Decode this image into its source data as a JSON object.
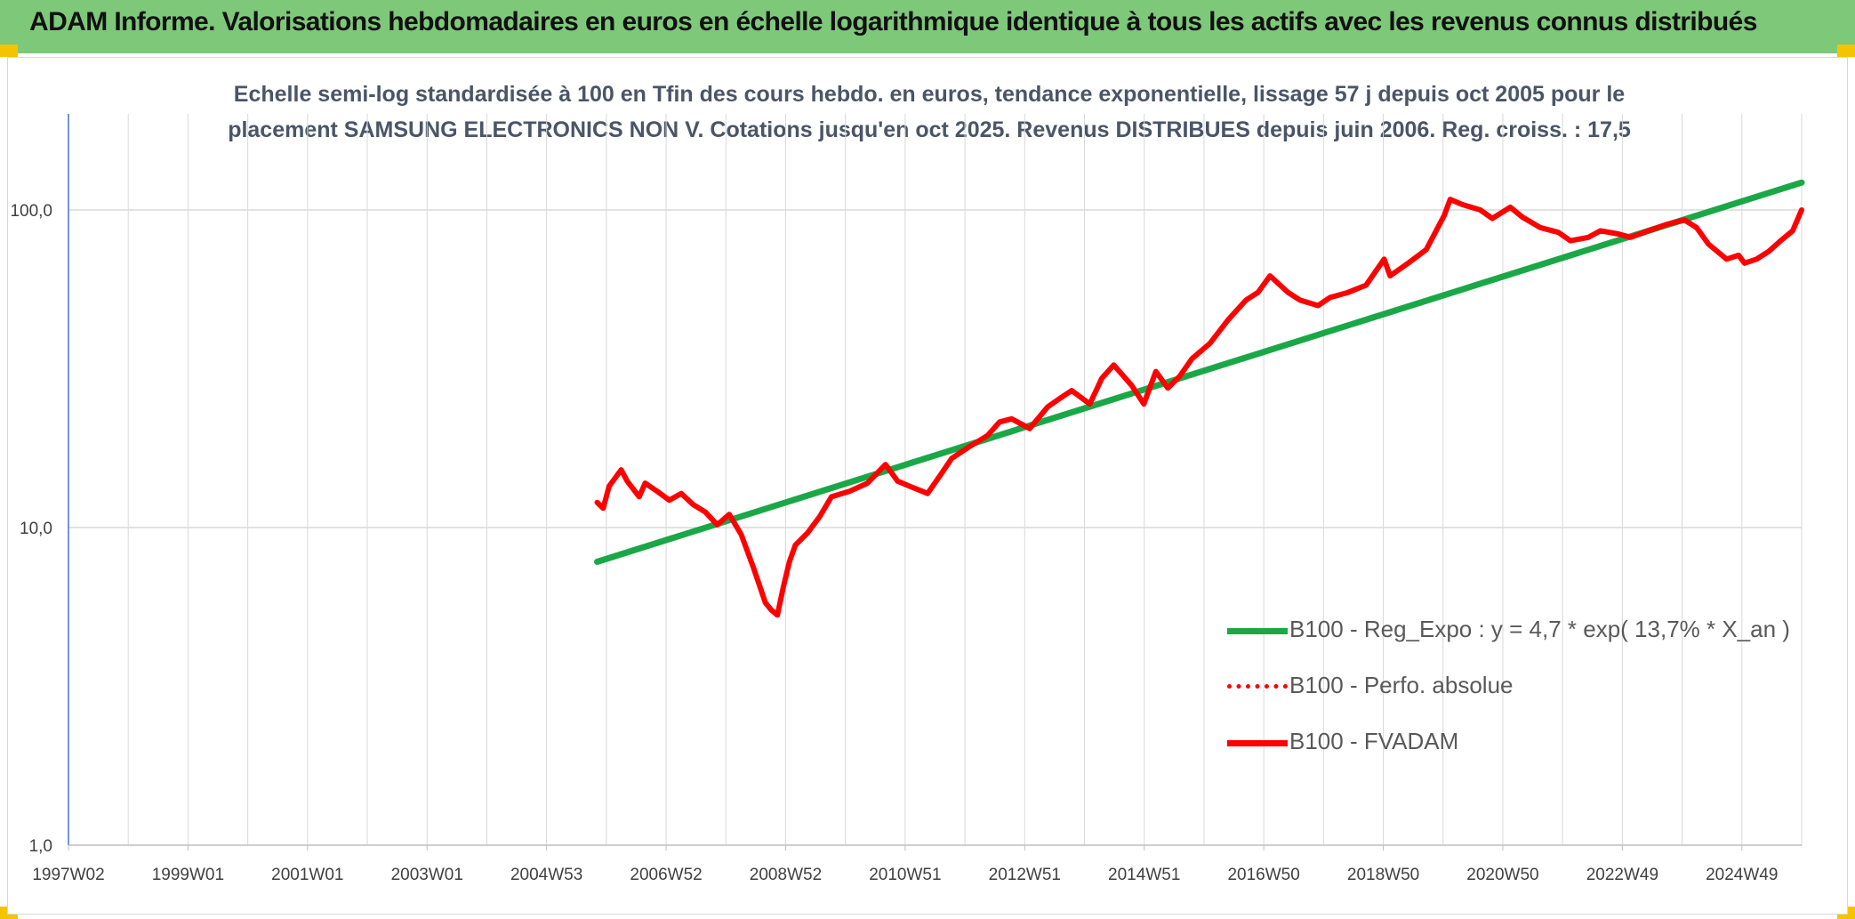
{
  "header": {
    "title": "ADAM Informe. Valorisations hebdomadaires en euros en échelle logarithmique identique à tous les actifs avec les revenus connus distribués"
  },
  "colors": {
    "banner": "#7ec87a",
    "trend_line": "#1aa847",
    "fvadam_line": "#ff0000",
    "perf_line": "#ff0000",
    "grid": "#d9d9d9"
  },
  "chart_data": {
    "type": "line",
    "title_line1": "Echelle semi-log standardisée à 100 en Tfin des cours hebdo. en euros, tendance exponentielle, lissage 57 j depuis oct 2005 pour le",
    "title_line2": "placement SAMSUNG ELECTRONICS NON V. Cotations jusqu'en oct 2025. Revenus DISTRIBUES depuis juin 2006. Reg. croiss. : 17,5",
    "y_scale": "log",
    "ylim": [
      1,
      100
    ],
    "y_ticks": [
      "1,0",
      "10,0",
      "100,0"
    ],
    "x_ticks": [
      "1997W02",
      "1999W01",
      "2001W01",
      "2003W01",
      "2004W53",
      "2006W52",
      "2008W52",
      "2010W51",
      "2012W51",
      "2014W51",
      "2016W50",
      "2018W50",
      "2020W50",
      "2022W49",
      "2024W49"
    ],
    "xlim": [
      1997.0,
      2025.85
    ],
    "grid": true,
    "legend_position": "right",
    "series": [
      {
        "name": "B100 - Reg_Expo : y = 4,7 * exp( 13,7% *  X_an )",
        "style": "solid-green",
        "x": [
          2005.8,
          2025.85
        ],
        "y": [
          7.8,
          122
        ]
      },
      {
        "name": "B100 - Perfo. absolue",
        "style": "dotted-red",
        "x": [],
        "y": []
      },
      {
        "name": "B100 - FVADAM",
        "style": "solid-red",
        "x": [
          2005.8,
          2005.9,
          2006.0,
          2006.2,
          2006.3,
          2006.5,
          2006.6,
          2006.8,
          2007.0,
          2007.2,
          2007.4,
          2007.6,
          2007.8,
          2008.0,
          2008.2,
          2008.4,
          2008.6,
          2008.7,
          2008.8,
          2008.9,
          2009.0,
          2009.1,
          2009.3,
          2009.5,
          2009.7,
          2010.0,
          2010.3,
          2010.6,
          2010.8,
          2011.0,
          2011.3,
          2011.5,
          2011.7,
          2012.0,
          2012.3,
          2012.5,
          2012.7,
          2013.0,
          2013.3,
          2013.5,
          2013.7,
          2014.0,
          2014.2,
          2014.4,
          2014.7,
          2014.9,
          2015.1,
          2015.3,
          2015.5,
          2015.7,
          2016.0,
          2016.3,
          2016.6,
          2016.8,
          2017.0,
          2017.3,
          2017.5,
          2017.8,
          2018.0,
          2018.3,
          2018.6,
          2018.9,
          2019.0,
          2019.3,
          2019.6,
          2019.9,
          2020.0,
          2020.2,
          2020.5,
          2020.7,
          2021.0,
          2021.2,
          2021.5,
          2021.8,
          2022.0,
          2022.3,
          2022.5,
          2022.8,
          2023.0,
          2023.3,
          2023.6,
          2023.9,
          2024.1,
          2024.3,
          2024.6,
          2024.8,
          2024.9,
          2025.1,
          2025.3,
          2025.5,
          2025.7,
          2025.85
        ],
        "y": [
          12.0,
          11.5,
          13.5,
          15.2,
          14.0,
          12.5,
          13.8,
          13.0,
          12.2,
          12.8,
          11.8,
          11.2,
          10.2,
          11.0,
          9.5,
          7.5,
          5.8,
          5.5,
          5.3,
          6.5,
          7.8,
          8.8,
          9.6,
          10.8,
          12.5,
          13.0,
          13.8,
          15.8,
          14.0,
          13.5,
          12.8,
          14.5,
          16.5,
          18.0,
          19.5,
          21.5,
          22.0,
          20.5,
          24.0,
          25.5,
          27.0,
          24.5,
          29.5,
          32.5,
          28.0,
          24.5,
          31.0,
          27.5,
          30.0,
          34.0,
          38.0,
          45.0,
          52.0,
          55.0,
          62.0,
          55.0,
          52.0,
          50.0,
          53.0,
          55.0,
          58.0,
          70.0,
          62.0,
          68.0,
          75.0,
          96.0,
          108.0,
          104.0,
          100.0,
          94.0,
          102.0,
          95.0,
          88.0,
          85.0,
          80.0,
          82.0,
          86.0,
          84.0,
          82.0,
          86.0,
          90.0,
          93.0,
          88.0,
          78.0,
          70.0,
          72.0,
          68.0,
          70.0,
          74.0,
          80.0,
          86.0,
          100.0
        ]
      }
    ]
  }
}
